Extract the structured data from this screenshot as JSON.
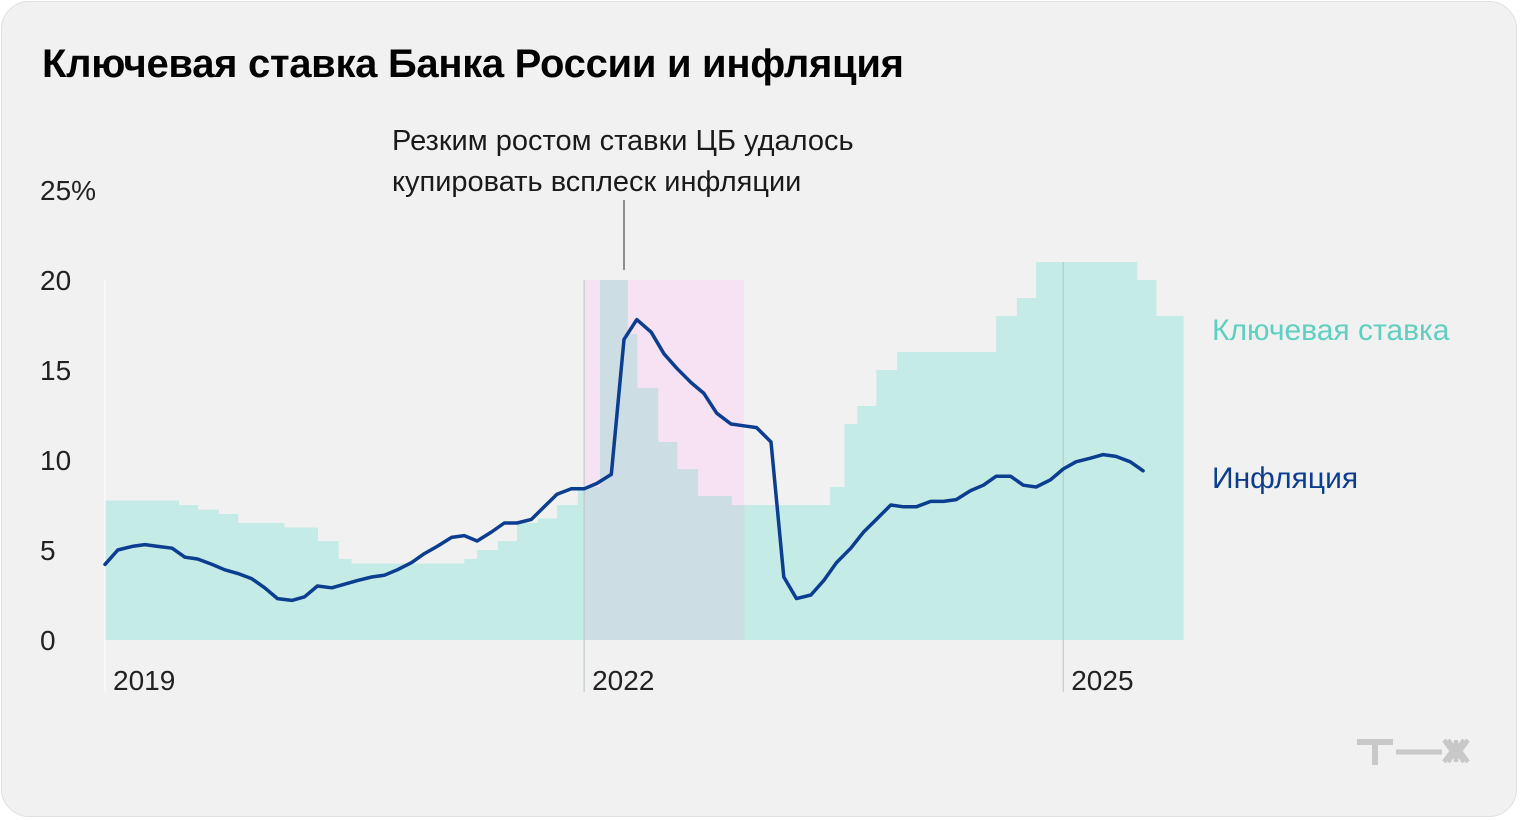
{
  "title": "Ключевая ставка Банка России и инфляция",
  "annotation": {
    "line1": "Резким ростом ставки ЦБ удалось",
    "line2": "купировать всплеск инфляции"
  },
  "logo": "Т—Ж",
  "colors": {
    "rate_fill": "#c5ebe6",
    "rate_label": "#5fcfc0",
    "inflation": "#0b3d91",
    "highlight_pink": "#f7e2f4",
    "overlap": "#cddde4",
    "background": "#f1f1f1"
  },
  "chart_data": {
    "type": "area",
    "y_tick_labels": [
      "25%",
      "20",
      "15",
      "10",
      "5",
      "0"
    ],
    "y_ticks": [
      25,
      20,
      15,
      10,
      5,
      0
    ],
    "ylim": [
      0,
      25
    ],
    "x_tick_labels": [
      "2019",
      "2022",
      "2025"
    ],
    "x_ticks": [
      2019,
      2022,
      2025
    ],
    "xlim": [
      2019,
      2025.8
    ],
    "grid": false,
    "legend_placement": "right",
    "series": [
      {
        "name": "Ключевая ставка",
        "type": "step-area",
        "points": [
          [
            2019.0,
            7.75
          ],
          [
            2019.46,
            7.5
          ],
          [
            2019.58,
            7.25
          ],
          [
            2019.71,
            7.0
          ],
          [
            2019.83,
            6.5
          ],
          [
            2020.12,
            6.25
          ],
          [
            2020.33,
            5.5
          ],
          [
            2020.46,
            4.5
          ],
          [
            2020.54,
            4.25
          ],
          [
            2021.25,
            4.5
          ],
          [
            2021.33,
            5.0
          ],
          [
            2021.46,
            5.5
          ],
          [
            2021.58,
            6.5
          ],
          [
            2021.71,
            6.75
          ],
          [
            2021.83,
            7.5
          ],
          [
            2021.96,
            8.5
          ],
          [
            2022.1,
            20.0
          ],
          [
            2022.27,
            17.0
          ],
          [
            2022.33,
            14.0
          ],
          [
            2022.46,
            11.0
          ],
          [
            2022.58,
            9.5
          ],
          [
            2022.71,
            8.0
          ],
          [
            2022.92,
            7.5
          ],
          [
            2023.54,
            8.5
          ],
          [
            2023.63,
            12.0
          ],
          [
            2023.71,
            13.0
          ],
          [
            2023.83,
            15.0
          ],
          [
            2023.96,
            16.0
          ],
          [
            2024.58,
            18.0
          ],
          [
            2024.71,
            19.0
          ],
          [
            2024.83,
            21.0
          ],
          [
            2025.46,
            20.0
          ],
          [
            2025.58,
            18.0
          ],
          [
            2025.75,
            18.0
          ]
        ]
      },
      {
        "name": "Инфляция",
        "type": "line",
        "points": [
          [
            2019.0,
            4.2
          ],
          [
            2019.08,
            5.0
          ],
          [
            2019.17,
            5.2
          ],
          [
            2019.25,
            5.3
          ],
          [
            2019.33,
            5.2
          ],
          [
            2019.42,
            5.1
          ],
          [
            2019.5,
            4.6
          ],
          [
            2019.58,
            4.5
          ],
          [
            2019.67,
            4.2
          ],
          [
            2019.75,
            3.9
          ],
          [
            2019.83,
            3.7
          ],
          [
            2019.92,
            3.4
          ],
          [
            2020.0,
            2.9
          ],
          [
            2020.08,
            2.3
          ],
          [
            2020.17,
            2.2
          ],
          [
            2020.25,
            2.4
          ],
          [
            2020.33,
            3.0
          ],
          [
            2020.42,
            2.9
          ],
          [
            2020.5,
            3.1
          ],
          [
            2020.58,
            3.3
          ],
          [
            2020.67,
            3.5
          ],
          [
            2020.75,
            3.6
          ],
          [
            2020.83,
            3.9
          ],
          [
            2020.92,
            4.3
          ],
          [
            2021.0,
            4.8
          ],
          [
            2021.08,
            5.2
          ],
          [
            2021.17,
            5.7
          ],
          [
            2021.25,
            5.8
          ],
          [
            2021.33,
            5.5
          ],
          [
            2021.42,
            6.0
          ],
          [
            2021.5,
            6.5
          ],
          [
            2021.58,
            6.5
          ],
          [
            2021.67,
            6.7
          ],
          [
            2021.75,
            7.4
          ],
          [
            2021.83,
            8.1
          ],
          [
            2021.92,
            8.4
          ],
          [
            2022.0,
            8.4
          ],
          [
            2022.08,
            8.7
          ],
          [
            2022.17,
            9.2
          ],
          [
            2022.25,
            16.7
          ],
          [
            2022.33,
            17.8
          ],
          [
            2022.42,
            17.1
          ],
          [
            2022.5,
            15.9
          ],
          [
            2022.58,
            15.1
          ],
          [
            2022.67,
            14.3
          ],
          [
            2022.75,
            13.7
          ],
          [
            2022.83,
            12.6
          ],
          [
            2022.92,
            12.0
          ],
          [
            2023.0,
            11.9
          ],
          [
            2023.08,
            11.8
          ],
          [
            2023.17,
            11.0
          ],
          [
            2023.25,
            3.5
          ],
          [
            2023.33,
            2.3
          ],
          [
            2023.42,
            2.5
          ],
          [
            2023.5,
            3.3
          ],
          [
            2023.58,
            4.3
          ],
          [
            2023.67,
            5.1
          ],
          [
            2023.75,
            6.0
          ],
          [
            2023.83,
            6.7
          ],
          [
            2023.92,
            7.5
          ],
          [
            2024.0,
            7.4
          ],
          [
            2024.08,
            7.4
          ],
          [
            2024.17,
            7.7
          ],
          [
            2024.25,
            7.7
          ],
          [
            2024.33,
            7.8
          ],
          [
            2024.42,
            8.3
          ],
          [
            2024.5,
            8.6
          ],
          [
            2024.58,
            9.1
          ],
          [
            2024.67,
            9.1
          ],
          [
            2024.75,
            8.6
          ],
          [
            2024.83,
            8.5
          ],
          [
            2024.92,
            8.9
          ],
          [
            2025.0,
            9.5
          ],
          [
            2025.08,
            9.9
          ],
          [
            2025.17,
            10.1
          ],
          [
            2025.25,
            10.3
          ],
          [
            2025.33,
            10.2
          ],
          [
            2025.42,
            9.9
          ],
          [
            2025.5,
            9.4
          ]
        ]
      }
    ],
    "highlight_range": [
      2022.0,
      2023.0
    ]
  }
}
